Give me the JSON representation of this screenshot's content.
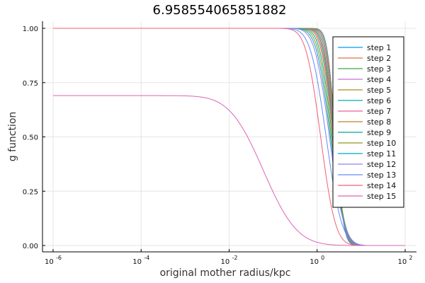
{
  "chart_data": {
    "type": "line",
    "title": "6.958554065851882",
    "xlabel": "original mother radius/kpc",
    "ylabel": "g function",
    "xscale": "log10",
    "xlim": [
      1e-06,
      100
    ],
    "ylim": [
      0,
      1
    ],
    "x_tick_labels": [
      "10^-6",
      "10^-4",
      "10^-2",
      "10^0",
      "10^2"
    ],
    "y_tick_labels": [
      "0.00",
      "0.25",
      "0.50",
      "0.75",
      "1.00"
    ],
    "grid": true,
    "legend_position": "top-right",
    "series": [
      {
        "name": "step 1",
        "color": "#009AF9",
        "plateau": 1.0,
        "x_half": 2.6,
        "x_zero": 7.5
      },
      {
        "name": "step 2",
        "color": "#E36F47",
        "plateau": 1.0,
        "x_half": 2.6,
        "x_zero": 7.9
      },
      {
        "name": "step 3",
        "color": "#3EA44E",
        "plateau": 1.0,
        "x_half": 2.55,
        "x_zero": 8.3
      },
      {
        "name": "step 4",
        "color": "#C371D2",
        "plateau": 1.0,
        "x_half": 2.5,
        "x_zero": 8.7
      },
      {
        "name": "step 5",
        "color": "#AC8E18",
        "plateau": 1.0,
        "x_half": 2.45,
        "x_zero": 9.1
      },
      {
        "name": "step 6",
        "color": "#00AAAE",
        "plateau": 1.0,
        "x_half": 2.4,
        "x_zero": 9.5
      },
      {
        "name": "step 7",
        "color": "#ED5E93",
        "plateau": 1.0,
        "x_half": 2.35,
        "x_zero": 10.0
      },
      {
        "name": "step 8",
        "color": "#C68125",
        "plateau": 1.0,
        "x_half": 2.3,
        "x_zero": 10.5
      },
      {
        "name": "step 9",
        "color": "#00A98D",
        "plateau": 1.0,
        "x_half": 2.2,
        "x_zero": 11.0
      },
      {
        "name": "step 10",
        "color": "#8E971E",
        "plateau": 1.0,
        "x_half": 2.1,
        "x_zero": 11.5
      },
      {
        "name": "step 11",
        "color": "#00A9CD",
        "plateau": 1.0,
        "x_half": 2.0,
        "x_zero": 12.0
      },
      {
        "name": "step 12",
        "color": "#9B7FE8",
        "plateau": 1.0,
        "x_half": 1.9,
        "x_zero": 12.5
      },
      {
        "name": "step 13",
        "color": "#618DF6",
        "plateau": 1.0,
        "x_half": 1.6,
        "x_zero": 12.0
      },
      {
        "name": "step 14",
        "color": "#F05F73",
        "plateau": 1.0,
        "x_half": 1.2,
        "x_zero": 8.0
      },
      {
        "name": "step 15",
        "color": "#DD64B5",
        "plateau": 0.69,
        "x_half": 0.06,
        "x_zero": 4.5
      }
    ]
  }
}
